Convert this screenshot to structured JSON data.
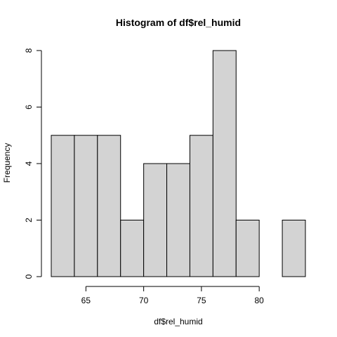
{
  "chart_data": {
    "type": "bar",
    "title": "Histogram of df$rel_humid",
    "xlabel": "df$rel_humid",
    "ylabel": "Frequency",
    "bin_edges": [
      62,
      64,
      66,
      68,
      70,
      72,
      74,
      76,
      78,
      80,
      82,
      84
    ],
    "values": [
      5,
      5,
      5,
      2,
      4,
      4,
      5,
      8,
      2,
      0,
      2
    ],
    "xlim": [
      62,
      84
    ],
    "ylim": [
      0,
      8
    ],
    "x_ticks": [
      "65",
      "70",
      "75",
      "80"
    ],
    "y_ticks": [
      "0",
      "2",
      "4",
      "6",
      "8"
    ],
    "bar_color": "#d3d3d3",
    "grid": false,
    "legend": "none"
  }
}
